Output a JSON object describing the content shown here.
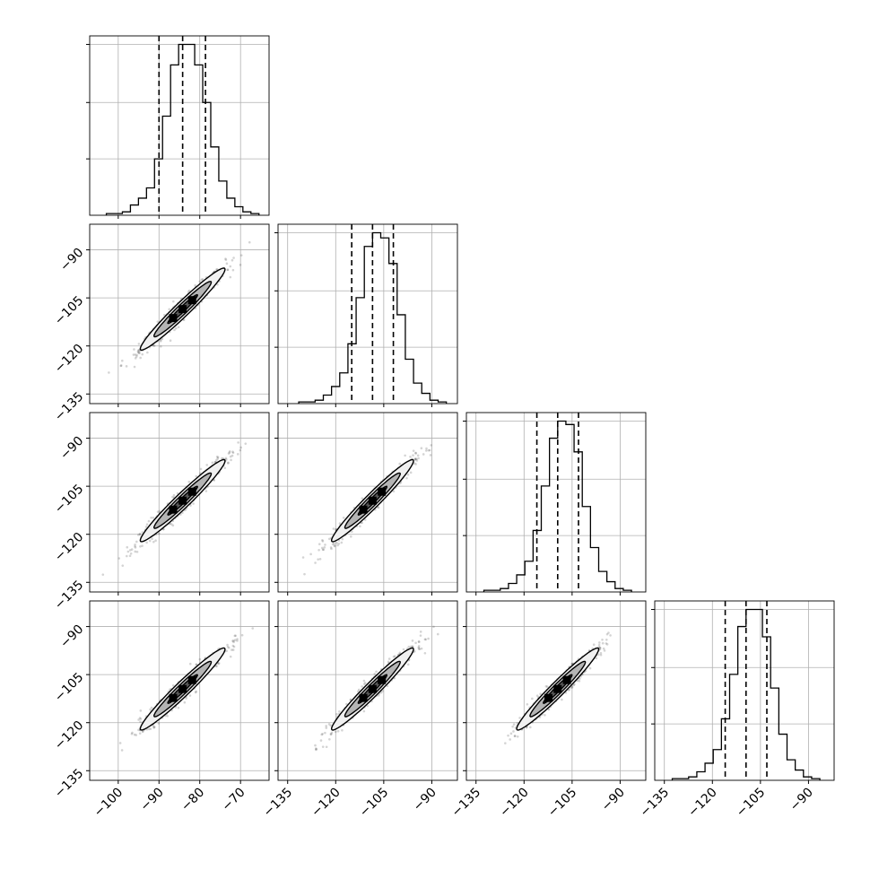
{
  "chart_data": {
    "type": "corner",
    "title": "",
    "n_params": 4,
    "params": [
      {
        "axis_range": [
          -107,
          -63
        ],
        "ticks": [
          -100,
          -90,
          -80,
          -70
        ],
        "tick_labels": [
          "−100",
          "−90",
          "−80",
          "−70"
        ],
        "quantiles": [
          -90,
          -84.2,
          -78.6
        ],
        "mean": -84.2,
        "sigma": 5.2
      },
      {
        "axis_range": [
          -138,
          -82
        ],
        "ticks": [
          -135,
          -120,
          -105,
          -90
        ],
        "tick_labels": [
          "−135",
          "−120",
          "−105",
          "−90"
        ],
        "quantiles": [
          -115,
          -108.5,
          -102
        ],
        "mean": -108.5,
        "sigma": 6.4
      },
      {
        "axis_range": [
          -138,
          -82
        ],
        "ticks": [
          -135,
          -120,
          -105,
          -90
        ],
        "tick_labels": [
          "−135",
          "−120",
          "−105",
          "−90"
        ],
        "quantiles": [
          -116,
          -109.5,
          -103
        ],
        "mean": -109.5,
        "sigma": 6.4
      },
      {
        "axis_range": [
          -138,
          -82
        ],
        "ticks": [
          -135,
          -120,
          -105,
          -90
        ],
        "tick_labels": [
          "−135",
          "−120",
          "−105",
          "−90"
        ],
        "quantiles": [
          -116,
          -109.5,
          -103
        ],
        "mean": -109.5,
        "sigma": 6.4
      }
    ],
    "histograms": [
      [
        1,
        1,
        2,
        6,
        10,
        16,
        33,
        58,
        88,
        100,
        100,
        88,
        66,
        40,
        20,
        10,
        5,
        2,
        1
      ],
      [
        1,
        1,
        2,
        5,
        10,
        18,
        35,
        62,
        92,
        100,
        97,
        82,
        52,
        26,
        12,
        6,
        2,
        1
      ],
      [
        1,
        1,
        2,
        5,
        10,
        18,
        36,
        62,
        90,
        100,
        98,
        82,
        50,
        26,
        12,
        6,
        2,
        1
      ],
      [
        1,
        1,
        2,
        5,
        10,
        18,
        36,
        62,
        90,
        100,
        100,
        84,
        54,
        27,
        12,
        6,
        2,
        1
      ]
    ],
    "hist_y_ticks": [
      33,
      66,
      100
    ],
    "correlation": 0.97,
    "contour_levels": [
      0.5,
      1.0,
      1.5
    ],
    "grid": true,
    "legend": "none"
  }
}
